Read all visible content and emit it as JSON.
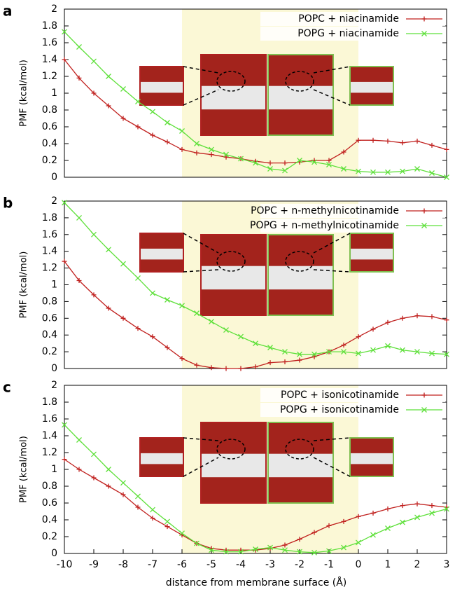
{
  "chart_data": [
    {
      "type": "line",
      "panel_label": "a",
      "ylabel": "PMF (kcal/mol)",
      "xlim": [
        -10,
        3
      ],
      "ylim": [
        0,
        2
      ],
      "yticks": [
        0,
        0.2,
        0.4,
        0.6,
        0.8,
        1,
        1.2,
        1.4,
        1.6,
        1.8,
        2
      ],
      "shaded_x": [
        -6,
        0
      ],
      "legend": "top right",
      "x": [
        -10,
        -9.5,
        -9,
        -8.5,
        -8,
        -7.5,
        -7,
        -6.5,
        -6,
        -5.5,
        -5,
        -4.5,
        -4,
        -3.5,
        -3,
        -2.5,
        -2,
        -1.5,
        -1,
        -0.5,
        0,
        0.5,
        1,
        1.5,
        2,
        2.5,
        3
      ],
      "series": [
        {
          "name": "POPC + niacinamide",
          "color": "#c0201e",
          "marker": "plus",
          "values": [
            1.4,
            1.18,
            1.0,
            0.85,
            0.7,
            0.6,
            0.5,
            0.42,
            0.33,
            0.29,
            0.27,
            0.24,
            0.22,
            0.19,
            0.17,
            0.17,
            0.18,
            0.2,
            0.2,
            0.3,
            0.44,
            0.44,
            0.43,
            0.41,
            0.43,
            0.38,
            0.33
          ]
        },
        {
          "name": "POPG + niacinamide",
          "color": "#5ee03a",
          "marker": "cross",
          "values": [
            1.73,
            1.55,
            1.38,
            1.2,
            1.05,
            0.9,
            0.78,
            0.65,
            0.55,
            0.4,
            0.33,
            0.27,
            0.22,
            0.17,
            0.1,
            0.08,
            0.2,
            0.18,
            0.15,
            0.1,
            0.07,
            0.06,
            0.06,
            0.07,
            0.1,
            0.05,
            0.0
          ]
        }
      ]
    },
    {
      "type": "line",
      "panel_label": "b",
      "ylabel": "PMF (kcal/mol)",
      "xlim": [
        -10,
        3
      ],
      "ylim": [
        0,
        2
      ],
      "yticks": [
        0,
        0.2,
        0.4,
        0.6,
        0.8,
        1,
        1.2,
        1.4,
        1.6,
        1.8,
        2
      ],
      "shaded_x": [
        -6,
        0
      ],
      "legend": "top right",
      "x": [
        -10,
        -9.5,
        -9,
        -8.5,
        -8,
        -7.5,
        -7,
        -6.5,
        -6,
        -5.5,
        -5,
        -4.5,
        -4,
        -3.5,
        -3,
        -2.5,
        -2,
        -1.5,
        -1,
        -0.5,
        0,
        0.5,
        1,
        1.5,
        2,
        2.5,
        3
      ],
      "series": [
        {
          "name": "POPC + n-methylnicotinamide",
          "color": "#c0201e",
          "marker": "plus",
          "values": [
            1.28,
            1.05,
            0.88,
            0.72,
            0.6,
            0.48,
            0.38,
            0.25,
            0.12,
            0.04,
            0.01,
            0.0,
            0.0,
            0.02,
            0.07,
            0.08,
            0.1,
            0.14,
            0.2,
            0.28,
            0.38,
            0.47,
            0.55,
            0.6,
            0.63,
            0.62,
            0.58
          ]
        },
        {
          "name": "POPG + n-methylnicotinamide",
          "color": "#5ee03a",
          "marker": "cross",
          "values": [
            1.98,
            1.8,
            1.6,
            1.42,
            1.25,
            1.08,
            0.9,
            0.82,
            0.75,
            0.66,
            0.56,
            0.46,
            0.38,
            0.3,
            0.25,
            0.2,
            0.17,
            0.17,
            0.2,
            0.2,
            0.18,
            0.22,
            0.27,
            0.22,
            0.2,
            0.18,
            0.17
          ]
        }
      ]
    },
    {
      "type": "line",
      "panel_label": "c",
      "ylabel": "PMF (kcal/mol)",
      "xlabel": "distance from membrane surface (Å)",
      "xlim": [
        -10,
        3
      ],
      "ylim": [
        0,
        2
      ],
      "xticks": [
        -10,
        -9,
        -8,
        -7,
        -6,
        -5,
        -4,
        -3,
        -2,
        -1,
        0,
        1,
        2,
        3
      ],
      "yticks": [
        0,
        0.2,
        0.4,
        0.6,
        0.8,
        1,
        1.2,
        1.4,
        1.6,
        1.8,
        2
      ],
      "shaded_x": [
        -6,
        0
      ],
      "legend": "top right",
      "x": [
        -10,
        -9.5,
        -9,
        -8.5,
        -8,
        -7.5,
        -7,
        -6.5,
        -6,
        -5.5,
        -5,
        -4.5,
        -4,
        -3.5,
        -3,
        -2.5,
        -2,
        -1.5,
        -1,
        -0.5,
        0,
        0.5,
        1,
        1.5,
        2,
        2.5,
        3
      ],
      "series": [
        {
          "name": "POPC + isonicotinamide",
          "color": "#c0201e",
          "marker": "plus",
          "values": [
            1.12,
            1.0,
            0.9,
            0.8,
            0.7,
            0.55,
            0.42,
            0.32,
            0.22,
            0.12,
            0.06,
            0.04,
            0.04,
            0.04,
            0.06,
            0.1,
            0.17,
            0.25,
            0.33,
            0.38,
            0.44,
            0.48,
            0.53,
            0.57,
            0.59,
            0.57,
            0.55
          ]
        },
        {
          "name": "POPG + isonicotinamide",
          "color": "#5ee03a",
          "marker": "cross",
          "values": [
            1.53,
            1.35,
            1.18,
            1.0,
            0.84,
            0.68,
            0.52,
            0.38,
            0.24,
            0.12,
            0.04,
            0.02,
            0.02,
            0.05,
            0.07,
            0.04,
            0.02,
            0.01,
            0.03,
            0.07,
            0.13,
            0.22,
            0.3,
            0.37,
            0.43,
            0.48,
            0.53
          ]
        }
      ]
    }
  ]
}
